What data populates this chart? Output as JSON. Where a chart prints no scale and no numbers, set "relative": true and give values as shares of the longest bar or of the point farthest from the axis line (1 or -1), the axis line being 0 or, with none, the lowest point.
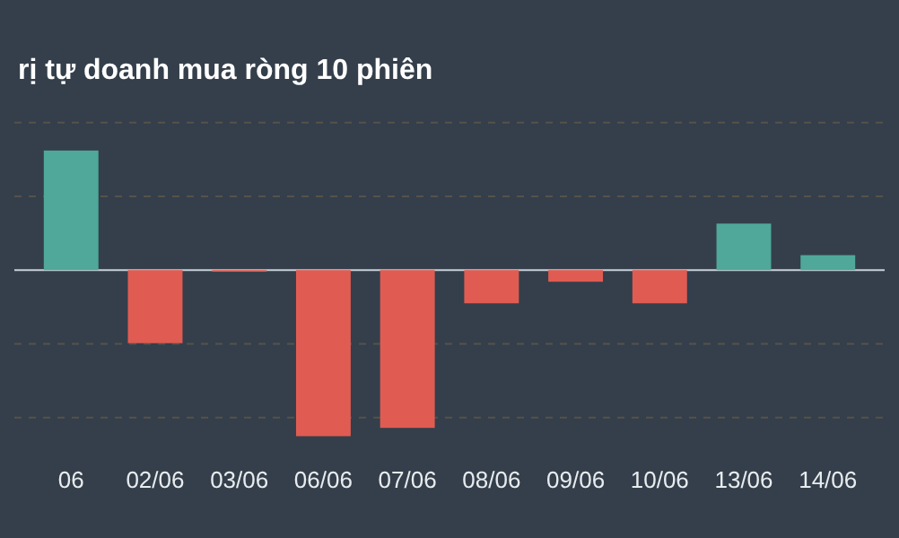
{
  "chart_data": {
    "type": "bar",
    "title": "rị tự doanh mua ròng 10 phiên",
    "relative": true,
    "grid": "y",
    "categories": [
      "06",
      "02/06",
      "03/06",
      "06/06",
      "07/06",
      "08/06",
      "09/06",
      "10/06",
      "13/06",
      "14/06"
    ],
    "values": [
      0.72,
      -0.44,
      -0.01,
      -1,
      -0.95,
      -0.2,
      -0.07,
      -0.2,
      0.28,
      0.09
    ],
    "colors": [
      "#4fa89a",
      "#e05c52",
      "#e05c52",
      "#e05c52",
      "#e05c52",
      "#e05c52",
      "#e05c52",
      "#e05c52",
      "#4fa89a",
      "#4fa89a"
    ]
  }
}
